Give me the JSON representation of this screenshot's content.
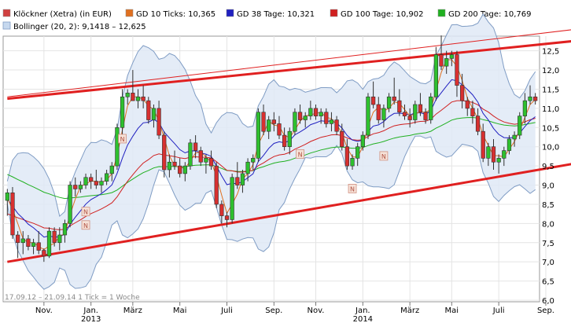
{
  "chart_data": {
    "type": "candlestick",
    "legend": [
      {
        "label": "Klöckner (Xetra) (in EUR)",
        "color": "#d04040"
      },
      {
        "label": "GD 10 Ticks: 10,365",
        "color": "#e07020"
      },
      {
        "label": "GD 38 Tage: 10,321",
        "color": "#2020c0"
      },
      {
        "label": "GD 100 Tage: 10,902",
        "color": "#d02020"
      },
      {
        "label": "GD 200 Tage: 10,769",
        "color": "#20b020"
      },
      {
        "label": "Bollinger (20, 2): 9,1418 – 12,625",
        "color": "#8fb0d8"
      }
    ],
    "footer": "17.09.12 – 21.09.14   1 Tick = 1 Woche",
    "y_ticks": [
      "6,0",
      "6,5",
      "7,0",
      "7,5",
      "8,0",
      "8,5",
      "9,0",
      "9,5",
      "10,0",
      "10,5",
      "11,0",
      "11,5",
      "12,0",
      "12,5"
    ],
    "y_range": [
      6.0,
      12.8
    ],
    "x_ticks": [
      {
        "label": "Nov.",
        "week": 7
      },
      {
        "label": "Jan.",
        "sub": "2013",
        "week": 16
      },
      {
        "label": "März",
        "week": 24
      },
      {
        "label": "Mai",
        "week": 33
      },
      {
        "label": "Juli",
        "week": 42
      },
      {
        "label": "Sep.",
        "week": 51
      },
      {
        "label": "Nov.",
        "week": 59
      },
      {
        "label": "Jan.",
        "sub": "2014",
        "week": 68
      },
      {
        "label": "März",
        "week": 77
      },
      {
        "label": "Mai",
        "week": 85
      },
      {
        "label": "Juli",
        "week": 94
      },
      {
        "label": "Sep.",
        "week": 103
      }
    ],
    "news_marker_label": "N",
    "news_markers": [
      {
        "week": 15,
        "y": 8.3
      },
      {
        "week": 15,
        "y": 7.95
      },
      {
        "week": 22,
        "y": 10.2
      },
      {
        "week": 56,
        "y": 9.8
      },
      {
        "week": 66,
        "y": 8.9
      },
      {
        "week": 72,
        "y": 9.75
      }
    ],
    "trend_lines": [
      {
        "from": [
          0,
          7.0
        ],
        "to": [
          108,
          9.55
        ],
        "width": "thick"
      },
      {
        "from": [
          0,
          11.25
        ],
        "to": [
          108,
          12.75
        ],
        "width": "thick"
      },
      {
        "from": [
          0,
          11.3
        ],
        "to": [
          108,
          13.05
        ],
        "width": "thin"
      }
    ],
    "candles": [
      [
        8.6,
        8.9,
        8.2,
        8.8
      ],
      [
        8.8,
        8.95,
        7.6,
        7.7
      ],
      [
        7.7,
        7.8,
        7.1,
        7.5
      ],
      [
        7.5,
        7.8,
        7.2,
        7.6
      ],
      [
        7.6,
        7.7,
        7.3,
        7.4
      ],
      [
        7.4,
        7.6,
        7.2,
        7.5
      ],
      [
        7.5,
        7.8,
        7.2,
        7.3
      ],
      [
        7.3,
        7.35,
        7.0,
        7.15
      ],
      [
        7.15,
        7.9,
        7.1,
        7.8
      ],
      [
        7.8,
        7.9,
        7.4,
        7.5
      ],
      [
        7.5,
        7.9,
        7.3,
        7.7
      ],
      [
        7.7,
        8.1,
        7.5,
        8.0
      ],
      [
        8.0,
        9.1,
        7.9,
        9.0
      ],
      [
        9.0,
        9.2,
        8.7,
        8.9
      ],
      [
        8.9,
        9.1,
        8.8,
        9.0
      ],
      [
        9.0,
        9.3,
        8.9,
        9.2
      ],
      [
        9.2,
        9.3,
        8.9,
        9.1
      ],
      [
        9.1,
        9.4,
        8.9,
        9.0
      ],
      [
        9.0,
        9.2,
        8.8,
        9.1
      ],
      [
        9.1,
        9.4,
        9.0,
        9.3
      ],
      [
        9.3,
        9.6,
        9.1,
        9.5
      ],
      [
        9.5,
        10.6,
        9.4,
        10.5
      ],
      [
        10.5,
        11.5,
        10.3,
        11.3
      ],
      [
        11.3,
        11.5,
        11.1,
        11.4
      ],
      [
        11.4,
        12.0,
        11.2,
        11.2
      ],
      [
        11.2,
        11.5,
        11.0,
        11.3
      ],
      [
        11.3,
        11.6,
        11.0,
        11.2
      ],
      [
        11.2,
        11.3,
        10.6,
        10.7
      ],
      [
        10.7,
        11.1,
        10.5,
        11.0
      ],
      [
        11.0,
        11.2,
        10.2,
        10.3
      ],
      [
        10.3,
        10.4,
        9.2,
        9.4
      ],
      [
        9.4,
        9.8,
        9.2,
        9.6
      ],
      [
        9.6,
        9.9,
        9.4,
        9.5
      ],
      [
        9.5,
        9.7,
        9.2,
        9.3
      ],
      [
        9.3,
        9.6,
        9.1,
        9.5
      ],
      [
        9.5,
        10.2,
        9.4,
        10.1
      ],
      [
        10.1,
        10.3,
        9.7,
        9.9
      ],
      [
        9.9,
        10.0,
        9.5,
        9.6
      ],
      [
        9.6,
        9.8,
        9.3,
        9.7
      ],
      [
        9.7,
        9.9,
        9.4,
        9.5
      ],
      [
        9.5,
        9.6,
        8.4,
        8.5
      ],
      [
        8.5,
        8.6,
        8.0,
        8.2
      ],
      [
        8.2,
        8.3,
        7.9,
        8.1
      ],
      [
        8.1,
        9.3,
        8.0,
        9.2
      ],
      [
        9.2,
        9.6,
        8.9,
        9.0
      ],
      [
        9.0,
        9.4,
        8.8,
        9.3
      ],
      [
        9.3,
        9.7,
        9.1,
        9.6
      ],
      [
        9.6,
        9.8,
        9.4,
        9.7
      ],
      [
        9.7,
        11.0,
        9.6,
        10.9
      ],
      [
        10.9,
        11.1,
        10.3,
        10.4
      ],
      [
        10.4,
        10.8,
        10.2,
        10.7
      ],
      [
        10.7,
        10.9,
        10.4,
        10.6
      ],
      [
        10.6,
        10.8,
        10.2,
        10.3
      ],
      [
        10.3,
        10.5,
        9.9,
        10.0
      ],
      [
        10.0,
        10.5,
        9.8,
        10.4
      ],
      [
        10.4,
        11.0,
        10.3,
        10.9
      ],
      [
        10.9,
        11.1,
        10.6,
        10.7
      ],
      [
        10.7,
        10.9,
        10.5,
        10.8
      ],
      [
        10.8,
        11.2,
        10.7,
        11.0
      ],
      [
        11.0,
        11.1,
        10.7,
        10.8
      ],
      [
        10.8,
        11.0,
        10.6,
        10.9
      ],
      [
        10.9,
        11.0,
        10.5,
        10.6
      ],
      [
        10.6,
        10.9,
        10.4,
        10.7
      ],
      [
        10.7,
        10.8,
        10.3,
        10.4
      ],
      [
        10.4,
        10.6,
        9.9,
        10.0
      ],
      [
        10.0,
        10.2,
        9.4,
        9.5
      ],
      [
        9.5,
        9.8,
        9.4,
        9.7
      ],
      [
        9.7,
        10.1,
        9.5,
        10.0
      ],
      [
        10.0,
        10.4,
        9.9,
        10.3
      ],
      [
        10.3,
        11.4,
        10.2,
        11.3
      ],
      [
        11.3,
        11.7,
        11.0,
        11.1
      ],
      [
        11.1,
        11.3,
        10.6,
        10.7
      ],
      [
        10.7,
        11.1,
        10.5,
        11.0
      ],
      [
        11.0,
        11.4,
        10.9,
        11.3
      ],
      [
        11.3,
        11.8,
        11.1,
        11.2
      ],
      [
        11.2,
        11.5,
        10.8,
        10.9
      ],
      [
        10.9,
        11.1,
        10.7,
        10.8
      ],
      [
        10.8,
        11.0,
        10.5,
        10.7
      ],
      [
        10.7,
        11.2,
        10.6,
        11.1
      ],
      [
        11.1,
        11.4,
        10.8,
        10.9
      ],
      [
        10.9,
        11.0,
        10.6,
        10.7
      ],
      [
        10.7,
        11.4,
        10.6,
        11.3
      ],
      [
        11.3,
        12.6,
        11.2,
        12.4
      ],
      [
        12.4,
        12.9,
        12.0,
        12.1
      ],
      [
        12.1,
        12.5,
        11.9,
        12.3
      ],
      [
        12.3,
        12.5,
        12.1,
        12.4
      ],
      [
        12.4,
        12.5,
        11.3,
        11.6
      ],
      [
        11.6,
        11.9,
        11.0,
        11.2
      ],
      [
        11.2,
        11.3,
        10.8,
        11.0
      ],
      [
        11.0,
        11.2,
        10.6,
        10.8
      ],
      [
        10.8,
        11.0,
        10.3,
        10.4
      ],
      [
        10.4,
        10.6,
        9.6,
        9.7
      ],
      [
        9.7,
        10.1,
        9.5,
        10.0
      ],
      [
        10.0,
        10.2,
        9.4,
        9.6
      ],
      [
        9.6,
        9.8,
        9.3,
        9.7
      ],
      [
        9.7,
        10.0,
        9.5,
        9.9
      ],
      [
        9.9,
        10.3,
        9.8,
        10.2
      ],
      [
        10.2,
        10.4,
        10.0,
        10.3
      ],
      [
        10.3,
        10.9,
        10.2,
        10.8
      ],
      [
        10.8,
        11.4,
        10.6,
        11.2
      ],
      [
        11.2,
        11.6,
        11.1,
        11.3
      ],
      [
        11.3,
        11.4,
        11.1,
        11.2
      ]
    ]
  }
}
